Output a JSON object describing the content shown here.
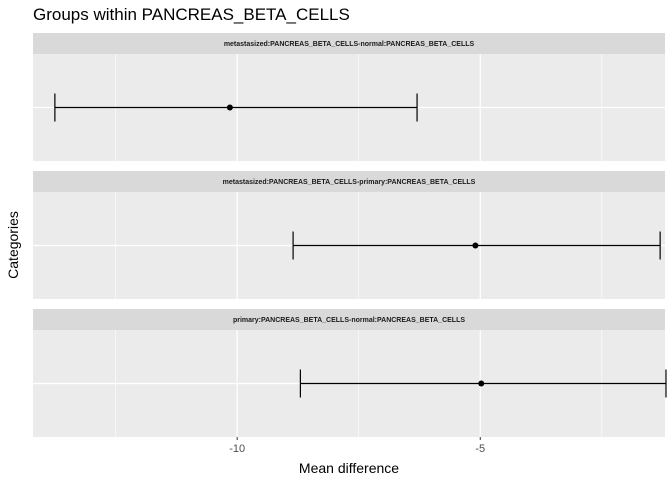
{
  "chart_data": {
    "type": "errorbar",
    "title": "Groups within PANCREAS_BETA_CELLS",
    "xlabel": "Mean difference",
    "ylabel": "Categories",
    "xlim": [
      -14.2,
      -1.2
    ],
    "x_ticks": [
      -10,
      -5
    ],
    "x_tick_labels": [
      "-10",
      "-5"
    ],
    "x_minor_ticks": [
      -12.5,
      -7.5,
      -2.5
    ],
    "grid": true,
    "colors": {
      "panel_bg": "#ebebeb",
      "strip_bg": "#d9d9d9",
      "grid": "#ffffff",
      "marks": "#000000"
    },
    "facets": [
      {
        "label": "metastasized:PANCREAS_BETA_CELLS-normal:PANCREAS_BETA_CELLS",
        "estimate": -10.15,
        "lower": -13.75,
        "upper": -6.3
      },
      {
        "label": "metastasized:PANCREAS_BETA_CELLS-primary:PANCREAS_BETA_CELLS",
        "estimate": -5.1,
        "lower": -8.85,
        "upper": -1.3
      },
      {
        "label": "primary:PANCREAS_BETA_CELLS-normal:PANCREAS_BETA_CELLS",
        "estimate": -4.98,
        "lower": -8.7,
        "upper": -1.18
      }
    ]
  }
}
